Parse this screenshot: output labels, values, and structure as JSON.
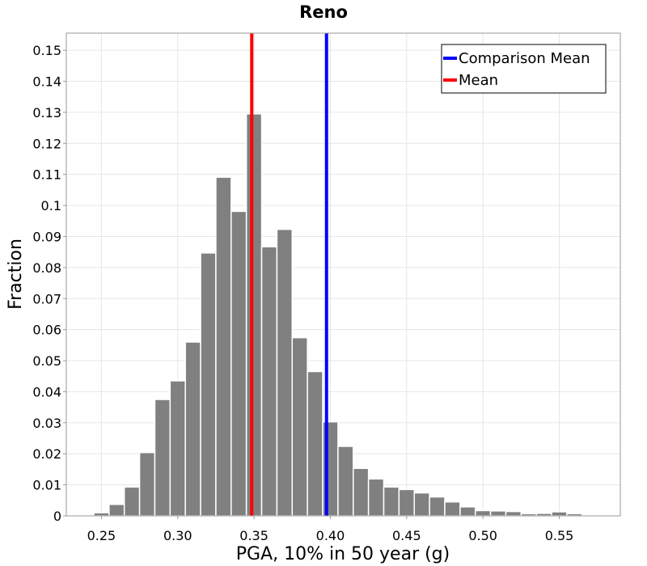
{
  "chart_data": {
    "type": "bar",
    "title": "Reno",
    "xlabel": "PGA, 10% in 50 year (g)",
    "ylabel": "Fraction",
    "xlim": [
      0.227,
      0.59
    ],
    "ylim": [
      0,
      0.1555
    ],
    "xticks": [
      "0.25",
      "0.30",
      "0.35",
      "0.40",
      "0.45",
      "0.50",
      "0.55"
    ],
    "yticks": [
      "0",
      "0.01",
      "0.02",
      "0.03",
      "0.04",
      "0.05",
      "0.06",
      "0.07",
      "0.08",
      "0.09",
      "0.1",
      "0.11",
      "0.12",
      "0.13",
      "0.14",
      "0.15"
    ],
    "grid": true,
    "bin_width": 0.01,
    "bins": [
      {
        "x": 0.24,
        "value": 0.0003
      },
      {
        "x": 0.25,
        "value": 0.001
      },
      {
        "x": 0.26,
        "value": 0.0037
      },
      {
        "x": 0.27,
        "value": 0.0093
      },
      {
        "x": 0.28,
        "value": 0.0204
      },
      {
        "x": 0.29,
        "value": 0.0375
      },
      {
        "x": 0.3,
        "value": 0.0435
      },
      {
        "x": 0.31,
        "value": 0.056
      },
      {
        "x": 0.32,
        "value": 0.0847
      },
      {
        "x": 0.33,
        "value": 0.1091
      },
      {
        "x": 0.34,
        "value": 0.0981
      },
      {
        "x": 0.35,
        "value": 0.1295
      },
      {
        "x": 0.36,
        "value": 0.0867
      },
      {
        "x": 0.37,
        "value": 0.0923
      },
      {
        "x": 0.38,
        "value": 0.0574
      },
      {
        "x": 0.39,
        "value": 0.0465
      },
      {
        "x": 0.4,
        "value": 0.0303
      },
      {
        "x": 0.41,
        "value": 0.0224
      },
      {
        "x": 0.42,
        "value": 0.0153
      },
      {
        "x": 0.43,
        "value": 0.0119
      },
      {
        "x": 0.44,
        "value": 0.0093
      },
      {
        "x": 0.45,
        "value": 0.0085
      },
      {
        "x": 0.46,
        "value": 0.0074
      },
      {
        "x": 0.47,
        "value": 0.0061
      },
      {
        "x": 0.48,
        "value": 0.0045
      },
      {
        "x": 0.49,
        "value": 0.0029
      },
      {
        "x": 0.5,
        "value": 0.0017
      },
      {
        "x": 0.51,
        "value": 0.0016
      },
      {
        "x": 0.52,
        "value": 0.0014
      },
      {
        "x": 0.53,
        "value": 0.0007
      },
      {
        "x": 0.54,
        "value": 0.0008
      },
      {
        "x": 0.55,
        "value": 0.0013
      },
      {
        "x": 0.56,
        "value": 0.0007
      },
      {
        "x": 0.57,
        "value": 0.0002
      },
      {
        "x": 0.58,
        "value": 0.0001
      }
    ],
    "lines": [
      {
        "name": "Comparison Mean",
        "x": 0.3975,
        "color": "#0000ff"
      },
      {
        "name": "Mean",
        "x": 0.3485,
        "color": "#ff0000"
      }
    ],
    "legend_position": "top-right",
    "colors": {
      "bars": "#808080",
      "bar_edge": "#ffffff",
      "axes": "#999999"
    }
  }
}
